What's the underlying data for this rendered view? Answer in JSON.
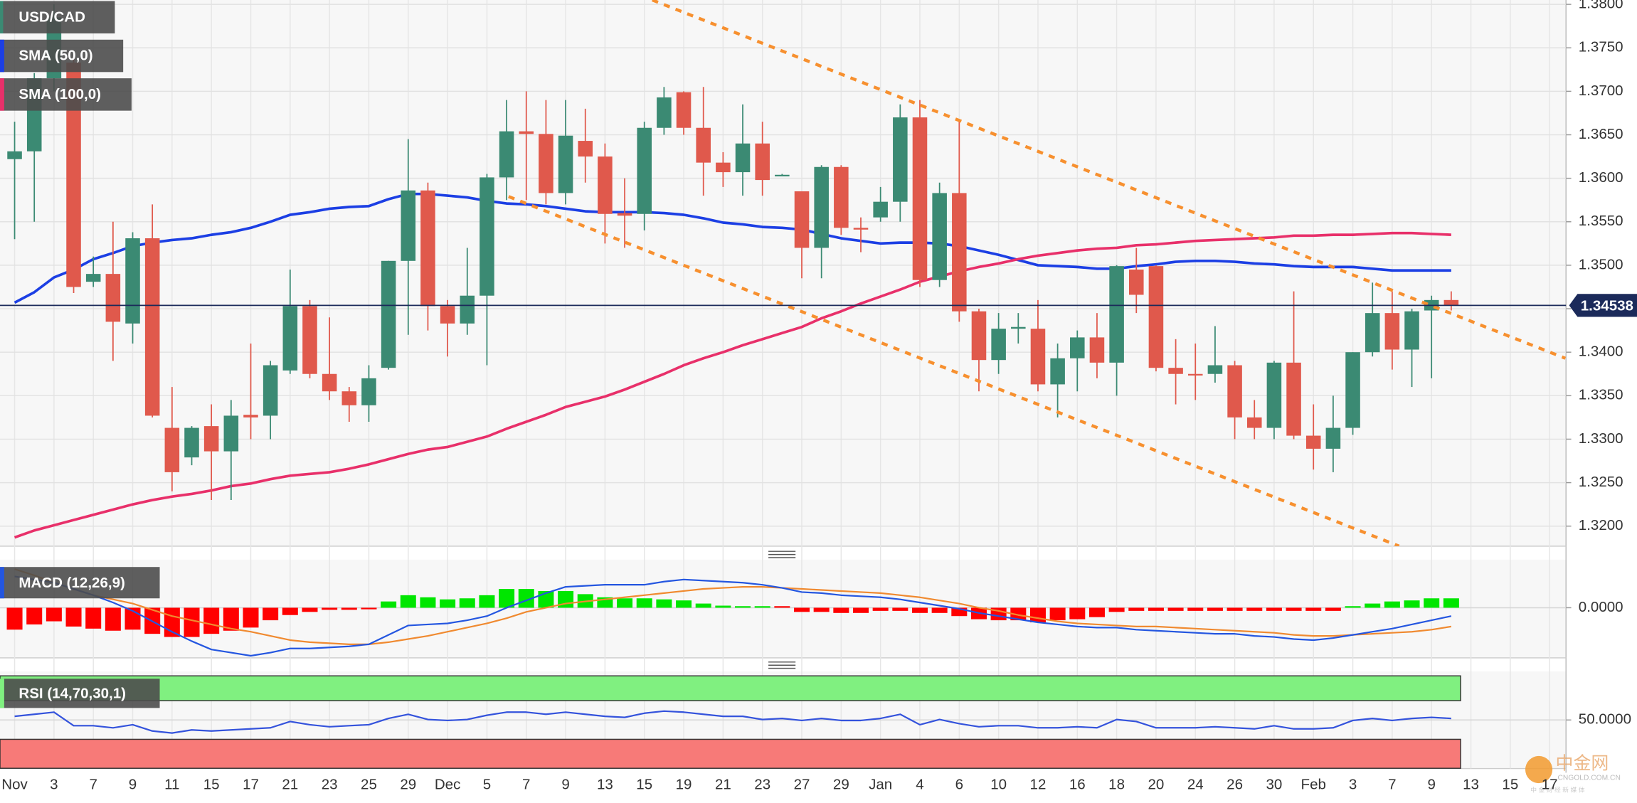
{
  "chart_data": [
    {
      "type": "candlestick",
      "title": "USD/CAD",
      "categories": [
        "Nov",
        null,
        "3",
        null,
        "7",
        null,
        "9",
        null,
        "11",
        null,
        "15",
        null,
        "17",
        null,
        "21",
        null,
        "23",
        null,
        "25",
        null,
        "29",
        null,
        "Dec",
        null,
        "5",
        null,
        "7",
        null,
        "9",
        null,
        "13",
        null,
        "15",
        null,
        "19",
        null,
        "21",
        null,
        "23",
        null,
        "27",
        null,
        "29",
        null,
        "Jan",
        null,
        "4",
        null,
        "6",
        null,
        "10",
        null,
        "12",
        null,
        "16",
        null,
        "18",
        null,
        "20",
        null,
        "24",
        null,
        "26",
        null,
        "30",
        null,
        "Feb",
        null,
        "3",
        null,
        "7",
        null,
        "9",
        null,
        "13",
        null,
        "15",
        null,
        "17"
      ],
      "open": [
        1.3622,
        1.3631,
        1.3715,
        1.3733,
        1.3481,
        1.349,
        1.3433,
        1.3531,
        1.3313,
        1.3279,
        1.3315,
        1.3286,
        1.3328,
        1.3327,
        1.3379,
        1.3453,
        1.3375,
        1.3355,
        1.3339,
        1.3382,
        1.3505,
        1.3586,
        1.3453,
        1.3433,
        1.3465,
        1.3601,
        1.3654,
        1.3651,
        1.3583,
        1.3643,
        1.3625,
        1.356,
        1.3559,
        1.3658,
        1.3699,
        1.3658,
        1.3618,
        1.3607,
        1.364,
        1.3604,
        1.3585,
        1.352,
        1.3613,
        1.3543,
        1.3555,
        1.3573,
        1.367,
        1.3483,
        1.3583,
        1.3447,
        1.3391,
        1.3427,
        1.3427,
        1.3363,
        1.3393,
        1.3417,
        1.3388,
        1.3495,
        1.3499,
        1.3382,
        1.3375,
        1.3375,
        1.3385,
        1.3325,
        1.3313,
        1.3388,
        1.3304,
        1.3289,
        1.3313,
        1.34,
        1.3445,
        1.3403,
        1.3448,
        1.346,
        null,
        null,
        null,
        null,
        null
      ],
      "high": [
        1.3665,
        1.3721,
        1.38,
        1.374,
        1.351,
        1.355,
        1.3538,
        1.357,
        1.336,
        1.3315,
        1.334,
        1.3345,
        1.341,
        1.339,
        1.3495,
        1.346,
        1.344,
        1.336,
        1.3385,
        1.3505,
        1.3645,
        1.3595,
        1.346,
        1.352,
        1.3605,
        1.369,
        1.37,
        1.369,
        1.369,
        1.368,
        1.364,
        1.36,
        1.3665,
        1.3705,
        1.37,
        1.3705,
        1.363,
        1.3685,
        1.3665,
        1.3605,
        1.3585,
        1.3615,
        1.3615,
        1.3555,
        1.359,
        1.3685,
        1.369,
        1.3595,
        1.3665,
        1.345,
        1.3445,
        1.3445,
        1.346,
        1.341,
        1.3425,
        1.3445,
        1.35,
        1.352,
        1.35,
        1.3415,
        1.341,
        1.343,
        1.339,
        1.3345,
        1.339,
        1.347,
        1.334,
        1.335,
        1.34,
        1.348,
        1.347,
        1.345,
        1.3465,
        1.347,
        null,
        null,
        null,
        null,
        null
      ],
      "low": [
        1.353,
        1.355,
        1.37,
        1.3468,
        1.3475,
        1.339,
        1.341,
        1.3325,
        1.324,
        1.327,
        1.323,
        1.323,
        1.33,
        1.33,
        1.3375,
        1.337,
        1.3345,
        1.332,
        1.332,
        1.338,
        1.342,
        1.3425,
        1.3395,
        1.342,
        1.3385,
        1.3575,
        1.3575,
        1.357,
        1.357,
        1.3595,
        1.3525,
        1.352,
        1.354,
        1.365,
        1.365,
        1.358,
        1.359,
        1.358,
        1.358,
        1.3603,
        1.3485,
        1.3485,
        1.3535,
        1.3515,
        1.355,
        1.355,
        1.3475,
        1.3475,
        1.3435,
        1.3355,
        1.3375,
        1.341,
        1.3355,
        1.3325,
        1.3355,
        1.337,
        1.335,
        1.3445,
        1.3378,
        1.334,
        1.3345,
        1.3365,
        1.33,
        1.33,
        1.33,
        1.33,
        1.3265,
        1.3262,
        1.3305,
        1.3395,
        1.338,
        1.336,
        1.337,
        1.3448,
        null,
        null,
        null,
        null,
        null
      ],
      "close": [
        1.3631,
        1.3715,
        1.3785,
        1.3475,
        1.349,
        1.3435,
        1.3531,
        1.3327,
        1.3262,
        1.3313,
        1.3286,
        1.3327,
        1.3325,
        1.3385,
        1.3453,
        1.3375,
        1.3355,
        1.3339,
        1.337,
        1.3505,
        1.3586,
        1.3453,
        1.3433,
        1.3465,
        1.3601,
        1.3654,
        1.3651,
        1.3583,
        1.3649,
        1.3625,
        1.3559,
        1.3557,
        1.3658,
        1.3693,
        1.3658,
        1.3618,
        1.3607,
        1.364,
        1.3598,
        1.3604,
        1.352,
        1.3613,
        1.3543,
        1.3541,
        1.3573,
        1.367,
        1.3483,
        1.3583,
        1.3447,
        1.3391,
        1.3427,
        1.3429,
        1.3363,
        1.3393,
        1.3417,
        1.3388,
        1.3499,
        1.3466,
        1.3382,
        1.3375,
        1.3374,
        1.3385,
        1.3325,
        1.3313,
        1.3388,
        1.3304,
        1.3289,
        1.3313,
        1.34,
        1.3445,
        1.3403,
        1.3447,
        1.346,
        1.34538,
        null,
        null,
        null,
        null,
        null
      ],
      "up_color": "#3b8a73",
      "down_color": "#e0594c",
      "series": [
        {
          "name": "SMA (50,0)",
          "color": "#1c3fe4",
          "values": [
            1.3457,
            1.3469,
            1.3486,
            1.3495,
            1.3507,
            1.3514,
            1.3522,
            1.3526,
            1.3529,
            1.3531,
            1.3535,
            1.3538,
            1.3543,
            1.355,
            1.3558,
            1.3561,
            1.3565,
            1.3567,
            1.3568,
            1.3576,
            1.3582,
            1.3582,
            1.358,
            1.3578,
            1.3574,
            1.3571,
            1.357,
            1.3568,
            1.3565,
            1.3562,
            1.3561,
            1.3561,
            1.3561,
            1.356,
            1.3558,
            1.3554,
            1.3549,
            1.3547,
            1.3544,
            1.3543,
            1.3541,
            1.3536,
            1.3531,
            1.3528,
            1.3525,
            1.3526,
            1.3526,
            1.3525,
            1.3522,
            1.3517,
            1.3512,
            1.3506,
            1.35,
            1.3499,
            1.3498,
            1.3496,
            1.3496,
            1.3499,
            1.3501,
            1.3504,
            1.3505,
            1.3505,
            1.3504,
            1.3502,
            1.3501,
            1.3499,
            1.3498,
            1.3498,
            1.3498,
            1.3496,
            1.3494,
            1.3494,
            1.3494,
            1.3494,
            null,
            null,
            null,
            null,
            null
          ]
        },
        {
          "name": "SMA (100,0)",
          "color": "#e8306a",
          "values": [
            1.3187,
            1.3195,
            1.3201,
            1.3207,
            1.3213,
            1.3219,
            1.3225,
            1.323,
            1.3234,
            1.3237,
            1.3241,
            1.3246,
            1.3249,
            1.3254,
            1.3258,
            1.326,
            1.3262,
            1.3266,
            1.3271,
            1.3277,
            1.3283,
            1.3288,
            1.3291,
            1.3297,
            1.3303,
            1.3312,
            1.332,
            1.3328,
            1.3337,
            1.3343,
            1.3349,
            1.3357,
            1.3366,
            1.3375,
            1.3385,
            1.3393,
            1.34,
            1.3408,
            1.3415,
            1.3422,
            1.3429,
            1.3439,
            1.3447,
            1.3456,
            1.3464,
            1.3472,
            1.3481,
            1.3487,
            1.3493,
            1.3498,
            1.3502,
            1.3507,
            1.3511,
            1.3514,
            1.3517,
            1.3519,
            1.352,
            1.3523,
            1.3524,
            1.3526,
            1.3528,
            1.3529,
            1.353,
            1.3531,
            1.3532,
            1.3534,
            1.3534,
            1.3535,
            1.3535,
            1.3536,
            1.3537,
            1.3537,
            1.3536,
            1.3535,
            null,
            null,
            null,
            null,
            null
          ]
        }
      ],
      "trendlines": [
        {
          "x": [
            32.4,
            78.8
          ],
          "y": [
            1.3805,
            1.3393
          ]
        },
        {
          "x": [
            25.1,
            70.35
          ],
          "y": [
            1.3579,
            1.3177
          ]
        }
      ],
      "trendline_color": "#f7902f",
      "price_line_color": "#1b2a5a",
      "ylim": [
        1.3177,
        1.3805
      ],
      "yticks": [
        {
          "value": 1.32,
          "label": "1.3200"
        },
        {
          "value": 1.325,
          "label": "1.3250"
        },
        {
          "value": 1.33,
          "label": "1.3300"
        },
        {
          "value": 1.335,
          "label": "1.3350"
        },
        {
          "value": 1.34,
          "label": "1.3400"
        },
        {
          "value": 1.345,
          "label": "1.3450"
        },
        {
          "value": 1.35,
          "label": "1.3500"
        },
        {
          "value": 1.355,
          "label": "1.3550"
        },
        {
          "value": 1.36,
          "label": "1.3600"
        },
        {
          "value": 1.365,
          "label": "1.3650"
        },
        {
          "value": 1.37,
          "label": "1.3700"
        },
        {
          "value": 1.375,
          "label": "1.3750"
        },
        {
          "value": 1.38,
          "label": "1.3800"
        }
      ],
      "grid": true
    },
    {
      "type": "macd",
      "title": "MACD (12,26,9)",
      "histogram": [
        -0.0021,
        -0.0016,
        -0.0013,
        -0.0018,
        -0.002,
        -0.0022,
        -0.0021,
        -0.0025,
        -0.0028,
        -0.0028,
        -0.0025,
        -0.0022,
        -0.0019,
        -0.0012,
        -0.0007,
        -0.0004,
        -0.0002,
        -0.0002,
        -0.0001,
        0.0006,
        0.0012,
        0.001,
        0.0008,
        0.0009,
        0.0012,
        0.0018,
        0.0018,
        0.0016,
        0.0016,
        0.0013,
        0.001,
        0.0009,
        0.0009,
        0.0008,
        0.0007,
        0.0004,
        0.0002,
        0.0001,
        0.0001,
        0,
        -0.0004,
        -0.0004,
        -0.0005,
        -0.0005,
        -0.0003,
        -0.0003,
        -0.0005,
        -0.0005,
        -0.0008,
        -0.0011,
        -0.0012,
        -0.0012,
        -0.0014,
        -0.0012,
        -0.0011,
        -0.0009,
        -0.0004,
        -0.0003,
        -0.0003,
        -0.0003,
        -0.0003,
        -0.0003,
        -0.0003,
        -0.0003,
        -0.0003,
        -0.0003,
        -0.0003,
        -0.0003,
        0.0001,
        0.0004,
        0.0006,
        0.0007,
        0.0009,
        0.0009,
        null,
        null,
        null,
        null,
        null
      ],
      "positive_color": "#00e600",
      "negative_color": "#ff0000",
      "macd": [
        0.003,
        0.0027,
        0.0024,
        0.0018,
        0.0012,
        0.0005,
        -0.0003,
        -0.0013,
        -0.0023,
        -0.0032,
        -0.004,
        -0.0043,
        -0.0046,
        -0.0043,
        -0.0039,
        -0.0039,
        -0.0038,
        -0.0037,
        -0.0035,
        -0.0026,
        -0.0017,
        -0.0016,
        -0.0015,
        -0.0012,
        -0.0008,
        0.0,
        0.0007,
        0.0014,
        0.002,
        0.0021,
        0.0022,
        0.0022,
        0.0022,
        0.0025,
        0.0027,
        0.0026,
        0.0025,
        0.0024,
        0.0022,
        0.0019,
        0.0015,
        0.0014,
        0.0012,
        0.0011,
        0.001,
        0.0008,
        0.0005,
        0.0002,
        -0.0001,
        -0.0005,
        -0.0008,
        -0.0011,
        -0.0014,
        -0.0016,
        -0.0018,
        -0.0019,
        -0.0019,
        -0.0021,
        -0.0022,
        -0.0023,
        -0.0024,
        -0.0025,
        -0.0025,
        -0.0027,
        -0.0028,
        -0.003,
        -0.0031,
        -0.0029,
        -0.0026,
        -0.0023,
        -0.002,
        -0.0016,
        -0.0012,
        -0.0008,
        null,
        null,
        null,
        null,
        null
      ],
      "macd_color": "#2456e0",
      "signal": [
        0.0037,
        0.0031,
        0.0024,
        0.0018,
        0.0012,
        0.0008,
        0.0004,
        -0.0002,
        -0.0008,
        -0.0012,
        -0.0016,
        -0.002,
        -0.0023,
        -0.0027,
        -0.0031,
        -0.0033,
        -0.0034,
        -0.0035,
        -0.0035,
        -0.0033,
        -0.003,
        -0.0027,
        -0.0023,
        -0.0019,
        -0.0015,
        -0.001,
        -0.0004,
        0.0,
        0.0004,
        0.0006,
        0.0008,
        0.001,
        0.0012,
        0.0014,
        0.0016,
        0.0018,
        0.0019,
        0.002,
        0.002,
        0.0019,
        0.0018,
        0.0017,
        0.0016,
        0.0015,
        0.0014,
        0.0012,
        0.001,
        0.0007,
        0.0004,
        0.0,
        -0.0003,
        -0.0007,
        -0.001,
        -0.0013,
        -0.0015,
        -0.0016,
        -0.0017,
        -0.0018,
        -0.0018,
        -0.0019,
        -0.002,
        -0.0021,
        -0.0022,
        -0.0023,
        -0.0024,
        -0.0026,
        -0.0027,
        -0.0027,
        -0.0026,
        -0.0025,
        -0.0024,
        -0.0023,
        -0.0021,
        -0.0018,
        null,
        null,
        null,
        null,
        null
      ],
      "signal_color": "#f08a30",
      "ylim": [
        -0.0048,
        0.0046
      ],
      "yticks": [
        {
          "value": 0,
          "label": "0.0000"
        }
      ]
    },
    {
      "type": "rsi",
      "title": "RSI (14,70,30,1)",
      "values": [
        53.8,
        55.9,
        58.1,
        44.1,
        44.1,
        41.9,
        45.1,
        38.6,
        36.5,
        39.7,
        38.6,
        39.7,
        40.8,
        41.9,
        48.4,
        45.1,
        43.0,
        44.1,
        45.1,
        51.6,
        55.9,
        50.5,
        49.5,
        50.5,
        54.9,
        58.1,
        58.1,
        55.9,
        58.1,
        55.9,
        53.8,
        52.7,
        57.0,
        59.2,
        58.1,
        55.9,
        53.8,
        53.8,
        50.5,
        51.6,
        49.5,
        51.6,
        49.5,
        49.5,
        51.6,
        55.9,
        45.1,
        50.5,
        46.2,
        43.0,
        44.1,
        44.1,
        41.9,
        41.9,
        43.0,
        41.9,
        50.5,
        48.4,
        41.9,
        41.9,
        41.9,
        43.0,
        41.9,
        40.8,
        44.1,
        40.8,
        40.8,
        41.9,
        49.5,
        51.6,
        49.5,
        51.6,
        52.7,
        51.6,
        null,
        null,
        null,
        null,
        null
      ],
      "color": "#3453dc",
      "overbought": 70,
      "oversold": 30,
      "overbought_color": "#80f080",
      "oversold_color": "#f77a78",
      "ylim": [
        0,
        100
      ],
      "yticks": [
        {
          "value": 50,
          "label": "50.0000"
        }
      ]
    }
  ],
  "watermark": {
    "brand": "中金网",
    "site": "CNGOLD.COM.CN",
    "tagline": "中 金 财 经 新 媒 体"
  }
}
